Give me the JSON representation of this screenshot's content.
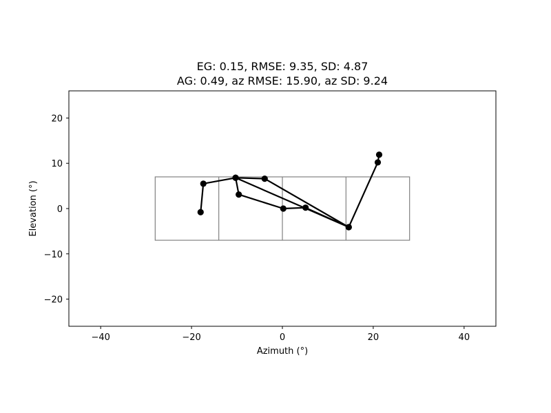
{
  "chart_data": {
    "type": "line",
    "title_lines": [
      "EG: 0.15, RMSE: 9.35, SD: 4.87",
      "AG: 0.49, az RMSE: 15.90, az SD: 9.24"
    ],
    "xlabel": "Azimuth (°)",
    "ylabel": "Elevation (°)",
    "xlim": [
      -47,
      47
    ],
    "ylim": [
      -26,
      26
    ],
    "xticks": [
      -40,
      -20,
      0,
      20,
      40
    ],
    "xtick_labels": [
      "−40",
      "−20",
      "0",
      "20",
      "40"
    ],
    "yticks": [
      -20,
      -10,
      0,
      10,
      20
    ],
    "ytick_labels": [
      "−20",
      "−10",
      "0",
      "10",
      "20"
    ],
    "grid": false,
    "reference_rectangle": {
      "x_min": -28,
      "x_max": 28,
      "y_min": -7,
      "y_max": 7
    },
    "reference_dividers_x": [
      -14,
      0,
      14
    ],
    "series": [
      {
        "color": "#000000",
        "marker": "circle",
        "x": [
          21.3,
          21.0,
          14.6,
          -3.9,
          -10.3,
          -9.6,
          0.2,
          5.1,
          14.6,
          -10.3,
          -17.4,
          -18.0
        ],
        "y": [
          11.9,
          10.2,
          -4.1,
          6.6,
          6.8,
          3.1,
          0.0,
          0.2,
          -4.1,
          6.8,
          5.5,
          -0.8
        ]
      }
    ]
  }
}
